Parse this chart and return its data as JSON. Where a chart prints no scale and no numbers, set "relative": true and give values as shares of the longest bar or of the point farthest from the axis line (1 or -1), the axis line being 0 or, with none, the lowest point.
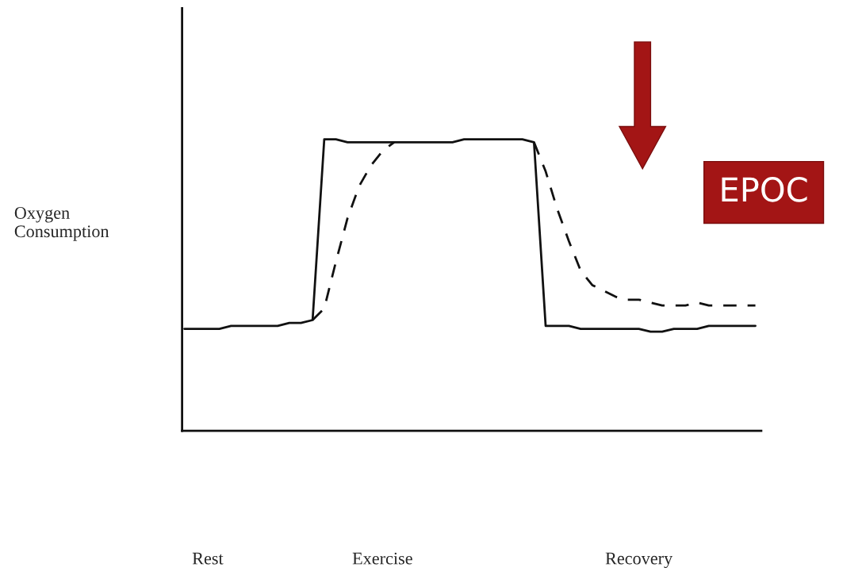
{
  "chart_data": {
    "type": "line",
    "relative": true,
    "ylabel": "Oxygen\nConsumption",
    "categories": [
      null,
      null,
      "Rest",
      null,
      null,
      null,
      null,
      null,
      null,
      null,
      null,
      null,
      null,
      null,
      null,
      null,
      null,
      "Exercise",
      null,
      null,
      null,
      null,
      null,
      null,
      null,
      null,
      null,
      null,
      null,
      null,
      null,
      null,
      null,
      null,
      null,
      null,
      null,
      null,
      null,
      "Recovery",
      null,
      null,
      null,
      null,
      null,
      null,
      null,
      null,
      null,
      null
    ],
    "series": [
      {
        "color": "#111111",
        "line_style": "solid",
        "values": [
          0.35,
          0.35,
          0.35,
          0.35,
          0.36,
          0.36,
          0.36,
          0.36,
          0.36,
          0.37,
          0.37,
          0.38,
          1.0,
          1.0,
          0.99,
          0.99,
          0.99,
          0.99,
          0.99,
          0.99,
          0.99,
          0.99,
          0.99,
          0.99,
          1.0,
          1.0,
          1.0,
          1.0,
          1.0,
          1.0,
          0.99,
          0.36,
          0.36,
          0.36,
          0.35,
          0.35,
          0.35,
          0.35,
          0.35,
          0.35,
          0.34,
          0.34,
          0.35,
          0.35,
          0.35,
          0.36,
          0.36,
          0.36,
          0.36,
          0.36
        ]
      },
      {
        "color": "#111111",
        "line_style": "dashed",
        "values": [
          null,
          null,
          null,
          null,
          null,
          null,
          null,
          null,
          null,
          null,
          null,
          0.38,
          0.42,
          0.58,
          0.73,
          0.84,
          0.91,
          0.96,
          0.99,
          null,
          null,
          null,
          null,
          null,
          null,
          null,
          null,
          null,
          null,
          null,
          0.99,
          0.89,
          0.76,
          0.65,
          0.55,
          0.5,
          0.48,
          0.46,
          0.45,
          0.45,
          0.44,
          0.43,
          0.43,
          0.43,
          0.44,
          0.43,
          0.43,
          0.43,
          0.43,
          0.43
        ]
      }
    ],
    "annotations": [
      "EPOC"
    ],
    "grid": false,
    "legend": false,
    "marker": "none"
  }
}
